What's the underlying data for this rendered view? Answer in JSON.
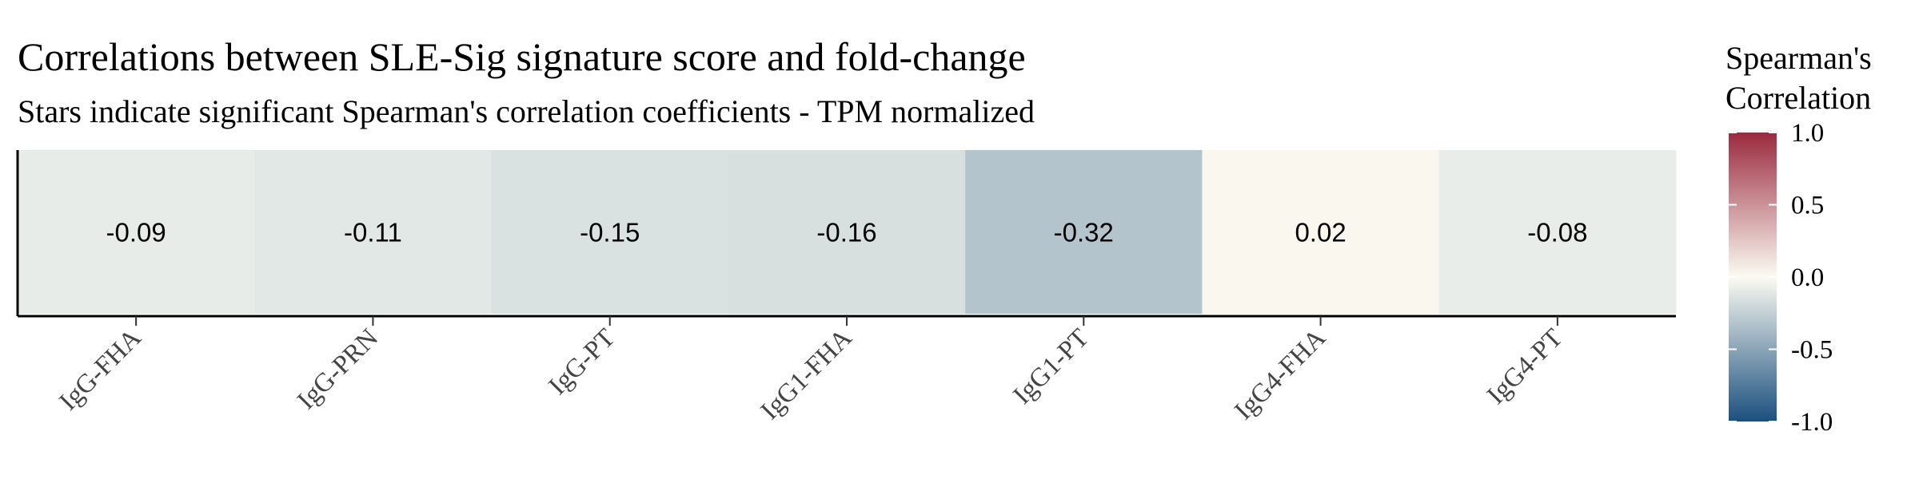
{
  "chart_data": {
    "type": "heatmap",
    "title": "Correlations between SLE-Sig signature score and fold-change",
    "subtitle": "Stars indicate significant Spearman's correlation coefficients - TPM normalized",
    "categories": [
      "IgG-FHA",
      "IgG-PRN",
      "IgG-PT",
      "IgG1-FHA",
      "IgG1-PT",
      "IgG4-FHA",
      "IgG4-PT"
    ],
    "values": [
      -0.09,
      -0.11,
      -0.15,
      -0.16,
      -0.32,
      0.02,
      -0.08
    ],
    "labels": [
      "-0.09",
      "-0.11",
      "-0.15",
      "-0.16",
      "-0.32",
      "0.02",
      "-0.08"
    ],
    "color_scale": {
      "low": "#1a4f7e",
      "mid": "#fbfbf2",
      "high": "#9a2a3d",
      "range": [
        -1.0,
        1.0
      ]
    },
    "legend": {
      "title_line1": "Spearman's",
      "title_line2": "Correlation",
      "ticks": [
        "1.0",
        "0.5",
        "0.0",
        "-0.5",
        "-1.0"
      ],
      "tick_values": [
        1.0,
        0.5,
        0.0,
        -0.5,
        -1.0
      ],
      "placement": "right"
    },
    "grid": false
  }
}
